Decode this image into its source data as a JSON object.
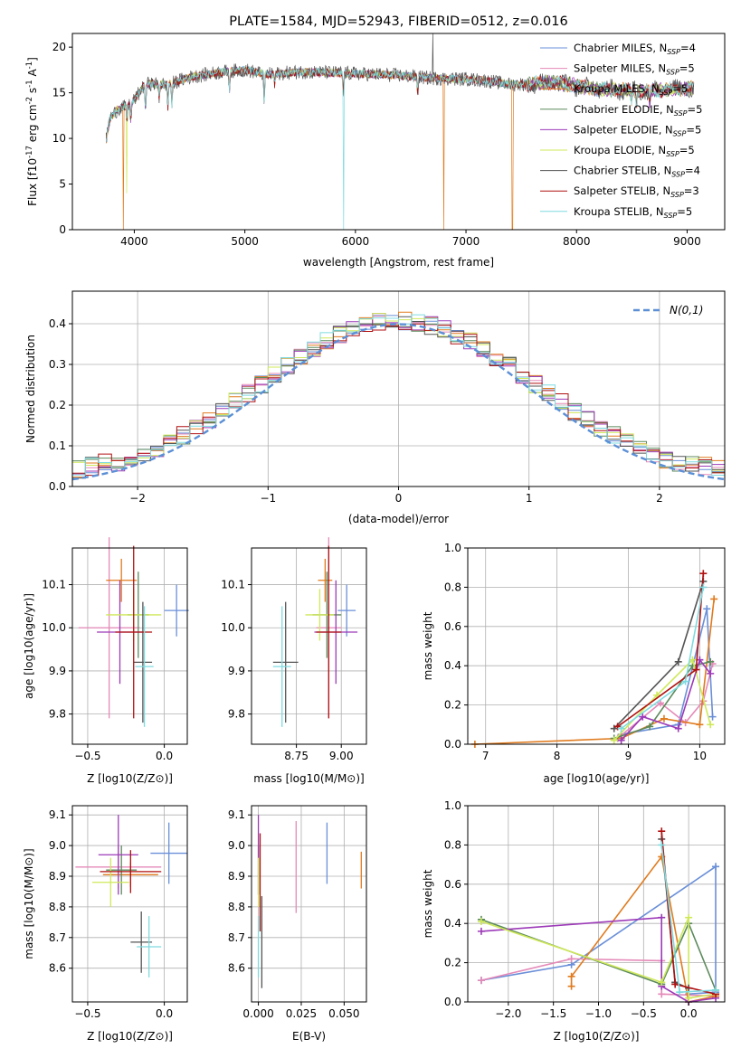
{
  "title": "PLATE=1584, MJD=52943, FIBERID=0512, z=0.016",
  "series": [
    {
      "name": "Chabrier MILES, N$_{SSP}$=4",
      "legend_main": "Chabrier MILES, N",
      "legend_sub": "SSP",
      "legend_tail": "=4",
      "color": "#6a8fd8"
    },
    {
      "name": "Salpeter MILES, N$_{SSP}$=5",
      "legend_main": "Salpeter MILES, N",
      "legend_sub": "SSP",
      "legend_tail": "=5",
      "color": "#e58ab8"
    },
    {
      "name": "Kroupa MILES, N$_{SSP}$=5",
      "legend_main": "Kroupa MILES, N",
      "legend_sub": "SSP",
      "legend_tail": "=5",
      "color": "#e07b1f"
    },
    {
      "name": "Chabrier ELODIE, N$_{SSP}$=5",
      "legend_main": "Chabrier ELODIE, N",
      "legend_sub": "SSP",
      "legend_tail": "=5",
      "color": "#5c8a5c"
    },
    {
      "name": "Salpeter ELODIE, N$_{SSP}$=5",
      "legend_main": "Salpeter ELODIE, N",
      "legend_sub": "SSP",
      "legend_tail": "=5",
      "color": "#9c3ab8"
    },
    {
      "name": "Kroupa ELODIE, N$_{SSP}$=5",
      "legend_main": "Kroupa ELODIE, N",
      "legend_sub": "SSP",
      "legend_tail": "=5",
      "color": "#cfe85a"
    },
    {
      "name": "Chabrier STELIB, N$_{SSP}$=4",
      "legend_main": "Chabrier STELIB, N",
      "legend_sub": "SSP",
      "legend_tail": "=4",
      "color": "#555555"
    },
    {
      "name": "Salpeter STELIB, N$_{SSP}$=3",
      "legend_main": "Salpeter STELIB, N",
      "legend_sub": "SSP",
      "legend_tail": "=3",
      "color": "#b01010"
    },
    {
      "name": "Kroupa STELIB, N$_{SSP}$=5",
      "legend_main": "Kroupa STELIB, N",
      "legend_sub": "SSP",
      "legend_tail": "=5",
      "color": "#7fdbe0"
    }
  ],
  "chart_data": [
    {
      "id": "spectrum",
      "type": "line",
      "title": "PLATE=1584, MJD=52943, FIBERID=0512, z=0.016",
      "xlabel": "wavelength [Angstrom, rest frame]",
      "ylabel_main": "Flux [f",
      "ylabel_mid": "10",
      "ylabel_exp1": "-17",
      "ylabel_rest": " erg cm",
      "ylabel_exp2": "-2",
      "ylabel_s": " s",
      "ylabel_exp3": "-1",
      "ylabel_end": " A",
      "ylabel_exp4": "-1",
      "ylabel_close": "]",
      "xlim": [
        3440,
        9340
      ],
      "ylim": [
        0,
        21.5
      ],
      "xticks": [
        4000,
        5000,
        6000,
        7000,
        8000,
        9000
      ],
      "yticks": [
        0,
        5,
        10,
        15,
        20
      ],
      "grid": false,
      "legend": "upper right",
      "continuum": [
        [
          3740,
          9.5
        ],
        [
          3780,
          12.2
        ],
        [
          3850,
          13.2
        ],
        [
          3930,
          13.5
        ],
        [
          4000,
          14.2
        ],
        [
          4100,
          16.0
        ],
        [
          4300,
          15.9
        ],
        [
          4500,
          16.7
        ],
        [
          4800,
          17.3
        ],
        [
          5000,
          17.5
        ],
        [
          5200,
          17.0
        ],
        [
          5500,
          17.3
        ],
        [
          6000,
          17.1
        ],
        [
          6400,
          16.9
        ],
        [
          6700,
          16.6
        ],
        [
          7000,
          16.5
        ],
        [
          7200,
          16.3
        ],
        [
          7400,
          15.9
        ],
        [
          7800,
          16.1
        ],
        [
          8200,
          15.4
        ],
        [
          8600,
          15.2
        ],
        [
          9060,
          15.5
        ]
      ],
      "absorption_lines": [
        [
          3934,
          1.6
        ],
        [
          3969,
          2.0
        ],
        [
          4102,
          3.0
        ],
        [
          4226,
          1.5
        ],
        [
          4304,
          2.6
        ],
        [
          4340,
          2.5
        ],
        [
          4861,
          2.0
        ],
        [
          5175,
          3.2
        ],
        [
          5270,
          1.2
        ],
        [
          5890,
          2.5
        ],
        [
          6563,
          1.8
        ],
        [
          8498,
          1.1
        ],
        [
          8542,
          1.6
        ],
        [
          8662,
          1.5
        ]
      ],
      "glitches": [
        {
          "series": 2,
          "x": 3900,
          "to": 0
        },
        {
          "series": 5,
          "x": 3930,
          "to": 4.0
        },
        {
          "series": 8,
          "x": 5895,
          "to": 0
        },
        {
          "series": 2,
          "x": 6800,
          "to": 0
        },
        {
          "series": 2,
          "x": 7420,
          "to": 0
        },
        {
          "series": 6,
          "x": 6700,
          "to": 21.5
        }
      ]
    },
    {
      "id": "residuals",
      "type": "histogram",
      "xlabel": "(data-model)/error",
      "ylabel": "Normed distribution",
      "xlim": [
        -2.5,
        2.5
      ],
      "ylim": [
        0,
        0.48
      ],
      "xticks": [
        -2,
        -1,
        0,
        1,
        2
      ],
      "yticks": [
        0,
        0.1,
        0.2,
        0.3,
        0.4
      ],
      "grid": true,
      "legend": "upper right",
      "reference_label": "N(0,1)",
      "bin_edges_start": -2.5,
      "bin_width": 0.1,
      "bins": 50
    },
    {
      "id": "age-vs-Z",
      "type": "errorbar",
      "xlabel": "Z [log10(Z/Z⊙)]",
      "ylabel": "age [log10(age/yr)]",
      "xlim": [
        -0.6,
        0.15
      ],
      "ylim": [
        9.73,
        10.185
      ],
      "xticks": [
        -0.5,
        0.0
      ],
      "yticks": [
        9.8,
        9.9,
        10.0,
        10.1
      ],
      "grid": true,
      "points": [
        {
          "series": 0,
          "x": 0.08,
          "xerr": 0.08,
          "y": 10.04,
          "yerr": 0.06
        },
        {
          "series": 1,
          "x": -0.36,
          "xerr": 0.2,
          "y": 10.0,
          "yerr": 0.21
        },
        {
          "series": 2,
          "x": -0.28,
          "xerr": 0.1,
          "y": 10.11,
          "yerr": 0.05
        },
        {
          "series": 3,
          "x": -0.17,
          "xerr": 0.07,
          "y": 10.03,
          "yerr": 0.1
        },
        {
          "series": 4,
          "x": -0.29,
          "xerr": 0.15,
          "y": 9.99,
          "yerr": 0.12
        },
        {
          "series": 5,
          "x": -0.2,
          "xerr": 0.18,
          "y": 10.03,
          "yerr": 0.06
        },
        {
          "series": 6,
          "x": -0.14,
          "xerr": 0.06,
          "y": 9.92,
          "yerr": 0.14
        },
        {
          "series": 7,
          "x": -0.2,
          "xerr": 0.12,
          "y": 9.99,
          "yerr": 0.2
        },
        {
          "series": 8,
          "x": -0.13,
          "xerr": 0.06,
          "y": 9.91,
          "yerr": 0.14
        }
      ]
    },
    {
      "id": "age-vs-mass",
      "type": "errorbar",
      "xlabel": "mass [log10(M/M⊙)]",
      "ylabel": "",
      "xlim": [
        8.5,
        9.14
      ],
      "ylim": [
        9.73,
        10.185
      ],
      "xticks": [
        8.75,
        9.0
      ],
      "yticks": [
        9.8,
        9.9,
        10.0,
        10.1
      ],
      "grid": true,
      "points": [
        {
          "series": 0,
          "x": 9.03,
          "xerr": 0.05,
          "y": 10.04,
          "yerr": 0.06
        },
        {
          "series": 1,
          "x": 8.93,
          "xerr": 0.07,
          "y": 10.0,
          "yerr": 0.21
        },
        {
          "series": 2,
          "x": 8.91,
          "xerr": 0.04,
          "y": 10.11,
          "yerr": 0.05
        },
        {
          "series": 3,
          "x": 8.92,
          "xerr": 0.08,
          "y": 10.03,
          "yerr": 0.1
        },
        {
          "series": 4,
          "x": 8.97,
          "xerr": 0.12,
          "y": 9.99,
          "yerr": 0.12
        },
        {
          "series": 5,
          "x": 8.88,
          "xerr": 0.08,
          "y": 10.03,
          "yerr": 0.06
        },
        {
          "series": 6,
          "x": 8.69,
          "xerr": 0.07,
          "y": 9.92,
          "yerr": 0.14
        },
        {
          "series": 7,
          "x": 8.93,
          "xerr": 0.07,
          "y": 9.99,
          "yerr": 0.2
        },
        {
          "series": 8,
          "x": 8.67,
          "xerr": 0.05,
          "y": 9.91,
          "yerr": 0.14
        }
      ]
    },
    {
      "id": "weight-vs-age",
      "type": "line",
      "xlabel": "age [log10(age/yr)]",
      "ylabel": "mass weight",
      "xlim": [
        6.75,
        10.35
      ],
      "ylim": [
        0,
        1.0
      ],
      "xticks": [
        7,
        8,
        9,
        10
      ],
      "yticks": [
        0,
        0.2,
        0.4,
        0.6,
        0.8,
        1.0
      ],
      "grid": true,
      "lines": [
        {
          "series": 0,
          "x": [
            8.9,
            9.7,
            10.1,
            10.18
          ],
          "y": [
            0.05,
            0.1,
            0.69,
            0.14
          ]
        },
        {
          "series": 1,
          "x": [
            8.85,
            9.45,
            9.8,
            10.05,
            10.18
          ],
          "y": [
            0.03,
            0.21,
            0.11,
            0.22,
            0.41
          ]
        },
        {
          "series": 2,
          "x": [
            6.85,
            8.9,
            9.5,
            10.0,
            10.2
          ],
          "y": [
            0.0,
            0.03,
            0.13,
            0.1,
            0.74
          ]
        },
        {
          "series": 3,
          "x": [
            8.8,
            9.3,
            9.9,
            10.15
          ],
          "y": [
            0.03,
            0.09,
            0.4,
            0.42
          ]
        },
        {
          "series": 4,
          "x": [
            8.9,
            9.2,
            9.7,
            10.0,
            10.15
          ],
          "y": [
            0.02,
            0.14,
            0.08,
            0.43,
            0.36
          ]
        },
        {
          "series": 5,
          "x": [
            8.8,
            9.4,
            9.9,
            10.15
          ],
          "y": [
            0.02,
            0.25,
            0.43,
            0.1
          ]
        },
        {
          "series": 6,
          "x": [
            8.8,
            9.7,
            10.05
          ],
          "y": [
            0.08,
            0.42,
            0.83
          ]
        },
        {
          "series": 7,
          "x": [
            8.85,
            9.95,
            10.05
          ],
          "y": [
            0.09,
            0.38,
            0.87
          ]
        },
        {
          "series": 8,
          "x": [
            8.9,
            9.8,
            10.05
          ],
          "y": [
            0.08,
            0.32,
            0.8
          ]
        }
      ]
    },
    {
      "id": "mass-vs-Z",
      "type": "errorbar",
      "xlabel": "Z [log10(Z/Z⊙)]",
      "ylabel": "mass [log10(M/M⊙)]",
      "xlim": [
        -0.6,
        0.15
      ],
      "ylim": [
        8.49,
        9.13
      ],
      "xticks": [
        -0.5,
        0.0
      ],
      "yticks": [
        8.6,
        8.7,
        8.8,
        8.9,
        9.0,
        9.1
      ],
      "grid": true,
      "points": [
        {
          "series": 0,
          "x": 0.03,
          "xerr": 0.12,
          "y": 8.975,
          "yerr": 0.1
        },
        {
          "series": 1,
          "x": -0.3,
          "xerr": 0.28,
          "y": 8.93,
          "yerr": 0.07
        },
        {
          "series": 2,
          "x": -0.22,
          "xerr": 0.18,
          "y": 8.905,
          "yerr": 0.04
        },
        {
          "series": 3,
          "x": -0.28,
          "xerr": 0.1,
          "y": 8.92,
          "yerr": 0.08
        },
        {
          "series": 4,
          "x": -0.3,
          "xerr": 0.13,
          "y": 8.97,
          "yerr": 0.13
        },
        {
          "series": 5,
          "x": -0.35,
          "xerr": 0.12,
          "y": 8.88,
          "yerr": 0.08
        },
        {
          "series": 6,
          "x": -0.15,
          "xerr": 0.07,
          "y": 8.685,
          "yerr": 0.1
        },
        {
          "series": 7,
          "x": -0.22,
          "xerr": 0.2,
          "y": 8.915,
          "yerr": 0.07
        },
        {
          "series": 8,
          "x": -0.1,
          "xerr": 0.08,
          "y": 8.67,
          "yerr": 0.1
        }
      ]
    },
    {
      "id": "mass-vs-EBV",
      "type": "errorbar",
      "xlabel": "E(B-V)",
      "ylabel": "",
      "xlim": [
        -0.004,
        0.063
      ],
      "ylim": [
        8.49,
        9.13
      ],
      "xticks": [
        0.0,
        0.025,
        0.05
      ],
      "yticks": [
        8.6,
        8.7,
        8.8,
        8.9,
        9.0,
        9.1
      ],
      "grid": true,
      "points": [
        {
          "series": 0,
          "x": 0.04,
          "xerr": 0,
          "y": 8.975,
          "yerr": 0.1
        },
        {
          "series": 1,
          "x": 0.022,
          "xerr": 0,
          "y": 8.93,
          "yerr": 0.15
        },
        {
          "series": 2,
          "x": 0.06,
          "xerr": 0,
          "y": 8.92,
          "yerr": 0.06
        },
        {
          "series": 3,
          "x": 0.0,
          "xerr": 0,
          "y": 8.92,
          "yerr": 0.08
        },
        {
          "series": 4,
          "x": 0.0,
          "xerr": 0,
          "y": 8.97,
          "yerr": 0.13
        },
        {
          "series": 5,
          "x": 0.0,
          "xerr": 0,
          "y": 8.88,
          "yerr": 0.08
        },
        {
          "series": 6,
          "x": 0.002,
          "xerr": 0,
          "y": 8.685,
          "yerr": 0.15
        },
        {
          "series": 7,
          "x": 0.001,
          "xerr": 0,
          "y": 8.88,
          "yerr": 0.16
        },
        {
          "series": 8,
          "x": 0.0,
          "xerr": 0,
          "y": 8.67,
          "yerr": 0.1
        }
      ]
    },
    {
      "id": "weight-vs-Z",
      "type": "line",
      "xlabel": "Z [log10(Z/Z⊙)]",
      "ylabel": "mass weight",
      "xlim": [
        -2.45,
        0.4
      ],
      "ylim": [
        0,
        1.0
      ],
      "xticks": [
        -2.0,
        -1.5,
        -1.0,
        -0.5,
        0.0
      ],
      "yticks": [
        0,
        0.2,
        0.4,
        0.6,
        0.8,
        1.0
      ],
      "grid": true,
      "lines": [
        {
          "series": 0,
          "x": [
            -2.3,
            -1.3,
            0.3,
            0.3,
            0.0
          ],
          "y": [
            0.11,
            0.19,
            0.69,
            0.05,
            0.04
          ]
        },
        {
          "series": 1,
          "x": [
            -2.3,
            -1.3,
            -0.3,
            -0.3,
            0.3
          ],
          "y": [
            0.11,
            0.22,
            0.21,
            0.04,
            0.03
          ]
        },
        {
          "series": 2,
          "x": [
            -1.3,
            -1.3,
            -0.3,
            0.0,
            0.3
          ],
          "y": [
            0.08,
            0.13,
            0.74,
            0.0,
            0.03
          ]
        },
        {
          "series": 3,
          "x": [
            -2.3,
            -0.3,
            0.0,
            0.3
          ],
          "y": [
            0.42,
            0.09,
            0.4,
            0.06
          ]
        },
        {
          "series": 4,
          "x": [
            -2.3,
            -0.3,
            -0.3,
            0.0,
            0.3
          ],
          "y": [
            0.36,
            0.43,
            0.08,
            0.0,
            0.02
          ]
        },
        {
          "series": 5,
          "x": [
            -2.3,
            -0.3,
            0.0,
            0.0,
            0.3
          ],
          "y": [
            0.41,
            0.1,
            0.43,
            0.02,
            0.04
          ]
        },
        {
          "series": 6,
          "x": [
            -0.3,
            -0.15,
            0.0
          ],
          "y": [
            0.83,
            0.1,
            0.07
          ]
        },
        {
          "series": 7,
          "x": [
            -0.3,
            -0.15,
            0.3
          ],
          "y": [
            0.87,
            0.09,
            0.04
          ]
        },
        {
          "series": 8,
          "x": [
            -0.3,
            -0.1,
            0.3
          ],
          "y": [
            0.8,
            0.05,
            0.06
          ]
        }
      ]
    }
  ]
}
